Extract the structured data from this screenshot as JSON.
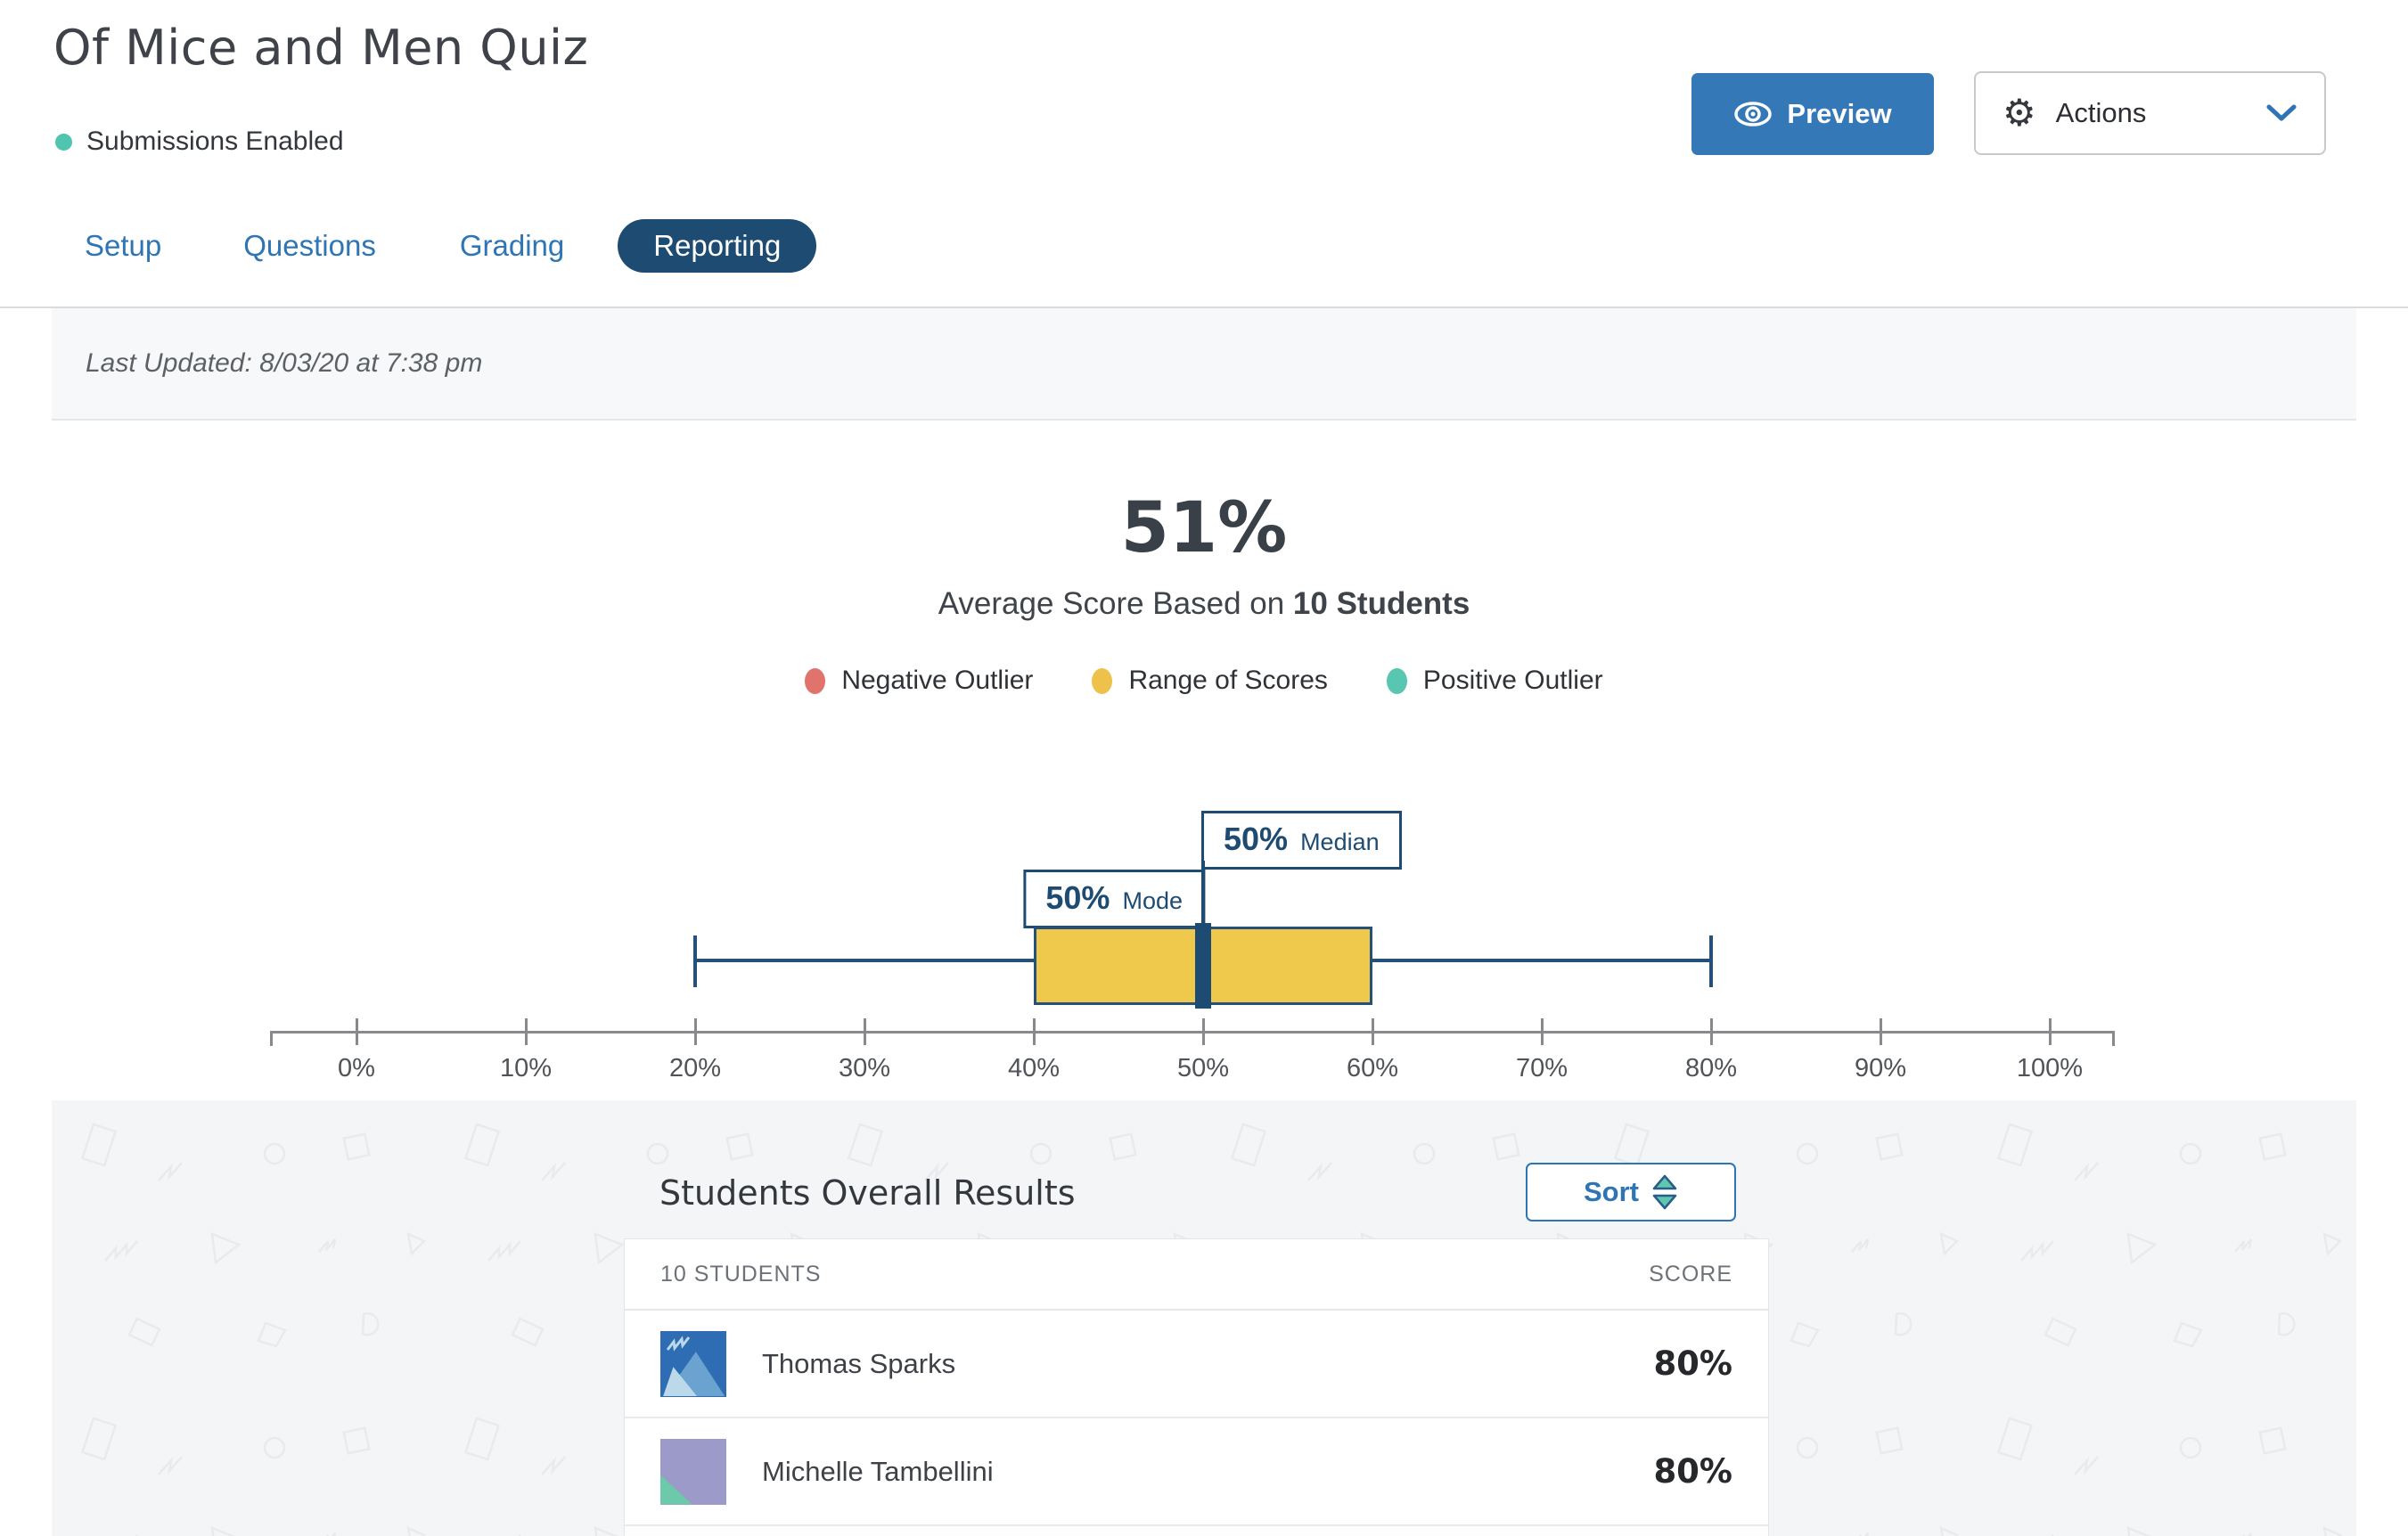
{
  "header": {
    "title": "Of Mice and Men Quiz",
    "status": {
      "label": "Submissions Enabled",
      "dot_color": "#4fc4ae"
    },
    "preview_button": {
      "label": "Preview"
    },
    "actions_button": {
      "label": "Actions"
    },
    "tabs": [
      {
        "label": "Setup",
        "active": false
      },
      {
        "label": "Questions",
        "active": false
      },
      {
        "label": "Grading",
        "active": false
      },
      {
        "label": "Reporting",
        "active": true
      }
    ]
  },
  "last_updated": "Last Updated: 8/03/20 at 7:38 pm",
  "summary": {
    "average_score": "51%",
    "subtitle_prefix": "Average Score Based on ",
    "subtitle_bold": "10 Students",
    "legend": [
      {
        "label": "Negative Outlier",
        "color": "#e0736c"
      },
      {
        "label": "Range of Scores",
        "color": "#eec24a"
      },
      {
        "label": "Positive Outlier",
        "color": "#59c6b2"
      }
    ]
  },
  "chart_data": {
    "type": "boxplot",
    "unit": "%",
    "min": 20,
    "q1": 40,
    "median": 50,
    "q3": 60,
    "max": 80,
    "mode": 50,
    "callouts": [
      {
        "value": "50%",
        "label": "Median"
      },
      {
        "value": "50%",
        "label": "Mode"
      }
    ],
    "axis_ticks": [
      "0%",
      "10%",
      "20%",
      "30%",
      "40%",
      "50%",
      "60%",
      "70%",
      "80%",
      "90%",
      "100%"
    ],
    "axis_range": [
      0,
      100
    ],
    "box_color": "#efc94c",
    "line_color": "#1e4b72"
  },
  "students_section": {
    "heading": "Students Overall Results",
    "sort_button": {
      "label": "Sort"
    },
    "table": {
      "header": {
        "students": "10 STUDENTS",
        "score": "SCORE"
      },
      "rows": [
        {
          "name": "Thomas Sparks",
          "score": "80%"
        },
        {
          "name": "Michelle Tambellini",
          "score": "80%"
        }
      ]
    }
  },
  "colors": {
    "primary_blue": "#2e75b5",
    "navy": "#1e4b72",
    "preview_button_bg": "#3478b7",
    "section_bg": "#f4f5f7",
    "updated_bar_bg": "#f7f8fa"
  }
}
